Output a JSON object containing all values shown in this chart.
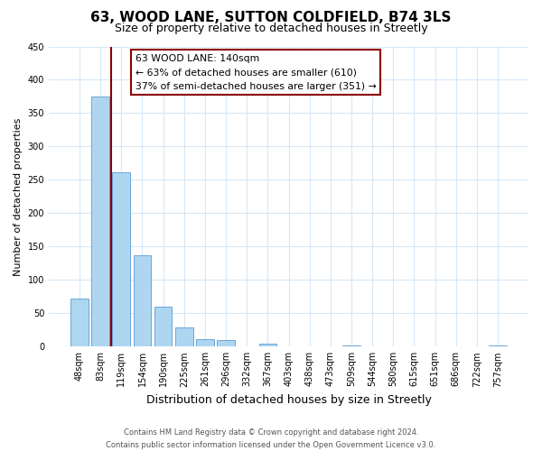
{
  "title": "63, WOOD LANE, SUTTON COLDFIELD, B74 3LS",
  "subtitle": "Size of property relative to detached houses in Streetly",
  "xlabel": "Distribution of detached houses by size in Streetly",
  "ylabel": "Number of detached properties",
  "bar_labels": [
    "48sqm",
    "83sqm",
    "119sqm",
    "154sqm",
    "190sqm",
    "225sqm",
    "261sqm",
    "296sqm",
    "332sqm",
    "367sqm",
    "403sqm",
    "438sqm",
    "473sqm",
    "509sqm",
    "544sqm",
    "580sqm",
    "615sqm",
    "651sqm",
    "686sqm",
    "722sqm",
    "757sqm"
  ],
  "bar_heights": [
    72,
    375,
    262,
    137,
    60,
    29,
    11,
    10,
    0,
    5,
    0,
    0,
    0,
    2,
    0,
    0,
    0,
    0,
    0,
    0,
    2
  ],
  "bar_color": "#aed6f1",
  "bar_edge_color": "#5b9bd5",
  "vline_color": "#8b0000",
  "annotation_title": "63 WOOD LANE: 140sqm",
  "annotation_line1": "← 63% of detached houses are smaller (610)",
  "annotation_line2": "37% of semi-detached houses are larger (351) →",
  "annotation_box_color": "#ffffff",
  "annotation_box_edge": "#8b0000",
  "ylim": [
    0,
    450
  ],
  "yticks": [
    0,
    50,
    100,
    150,
    200,
    250,
    300,
    350,
    400,
    450
  ],
  "footer1": "Contains HM Land Registry data © Crown copyright and database right 2024.",
  "footer2": "Contains public sector information licensed under the Open Government Licence v3.0.",
  "bg_color": "#ffffff",
  "grid_color": "#d6e8f7",
  "title_fontsize": 11,
  "subtitle_fontsize": 9,
  "ylabel_fontsize": 8,
  "xlabel_fontsize": 9,
  "tick_fontsize": 7
}
